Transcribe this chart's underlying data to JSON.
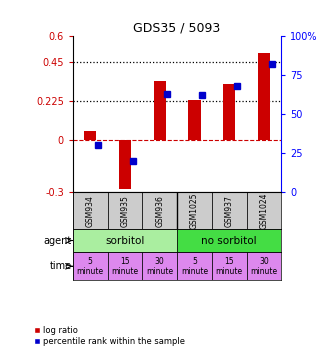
{
  "title": "GDS35 / 5093",
  "samples": [
    "GSM934",
    "GSM935",
    "GSM936",
    "GSM1025",
    "GSM937",
    "GSM1024"
  ],
  "log_ratio": [
    0.05,
    -0.28,
    0.34,
    0.23,
    0.32,
    0.5
  ],
  "percentile": [
    30,
    20,
    63,
    62,
    68,
    82
  ],
  "ylim_left": [
    -0.3,
    0.6
  ],
  "ylim_right": [
    0,
    100
  ],
  "yticks_left": [
    -0.3,
    0,
    0.225,
    0.45,
    0.6
  ],
  "yticks_right": [
    0,
    25,
    50,
    75,
    100
  ],
  "hlines": [
    0.225,
    0.45
  ],
  "time_labels": [
    "5\nminute",
    "15\nminute",
    "30\nminute",
    "5\nminute",
    "15\nminute",
    "30\nminute"
  ],
  "time_color": "#dd88ee",
  "bar_color_red": "#cc0000",
  "bar_color_blue": "#0000cc",
  "bar_width": 0.35,
  "background_color": "#ffffff",
  "agent_color_sorbitol": "#aaeea0",
  "agent_color_nosorbitol": "#44dd44",
  "gsm_bg": "#cccccc"
}
